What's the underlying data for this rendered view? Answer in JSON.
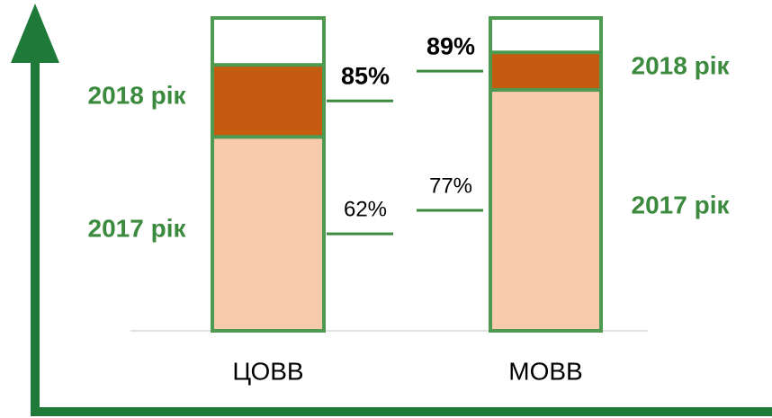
{
  "chart_data": {
    "type": "bar",
    "stacked": true,
    "categories": [
      "ЦОВВ",
      "МОВВ"
    ],
    "series": [
      {
        "name": "2017 рік",
        "color": "#f8cbad",
        "values": [
          62,
          77
        ],
        "value_labels": [
          "62%",
          "77%"
        ]
      },
      {
        "name": "2018 рік",
        "color": "#c55a11",
        "values": [
          23,
          12
        ]
      }
    ],
    "totals": [
      85,
      89
    ],
    "total_labels": [
      "85%",
      "89%"
    ],
    "ylim": [
      0,
      100
    ]
  }
}
